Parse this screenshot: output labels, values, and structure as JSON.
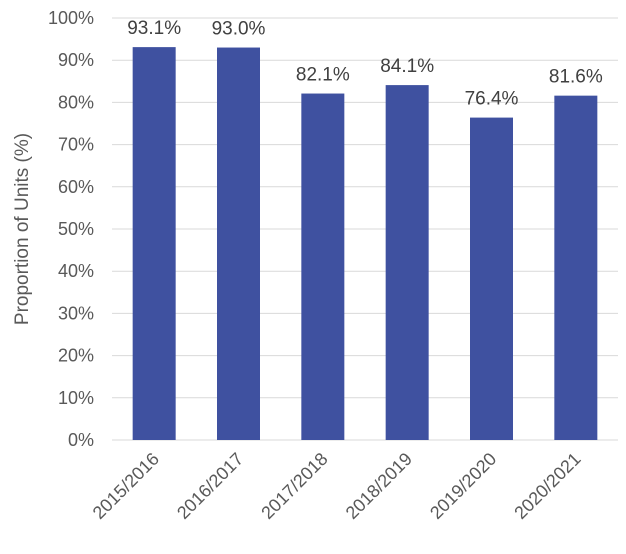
{
  "chart_data": {
    "type": "bar",
    "categories": [
      "2015/2016",
      "2016/2017",
      "2017/2018",
      "2018/2019",
      "2019/2020",
      "2020/2021"
    ],
    "values": [
      93.1,
      93.0,
      82.1,
      84.1,
      76.4,
      81.6
    ],
    "data_labels": [
      "93.1%",
      "93.0%",
      "82.1%",
      "84.1%",
      "76.4%",
      "81.6%"
    ],
    "title": "",
    "xlabel": "",
    "ylabel": "Proportion of Units (%)",
    "ylim": [
      0,
      100
    ],
    "yticks": [
      0,
      10,
      20,
      30,
      40,
      50,
      60,
      70,
      80,
      90,
      100
    ],
    "ytick_labels": [
      "0%",
      "10%",
      "20%",
      "30%",
      "40%",
      "50%",
      "60%",
      "70%",
      "80%",
      "90%",
      "100%"
    ],
    "grid": true,
    "legend": "none",
    "bar_color": "#3f51a0"
  }
}
